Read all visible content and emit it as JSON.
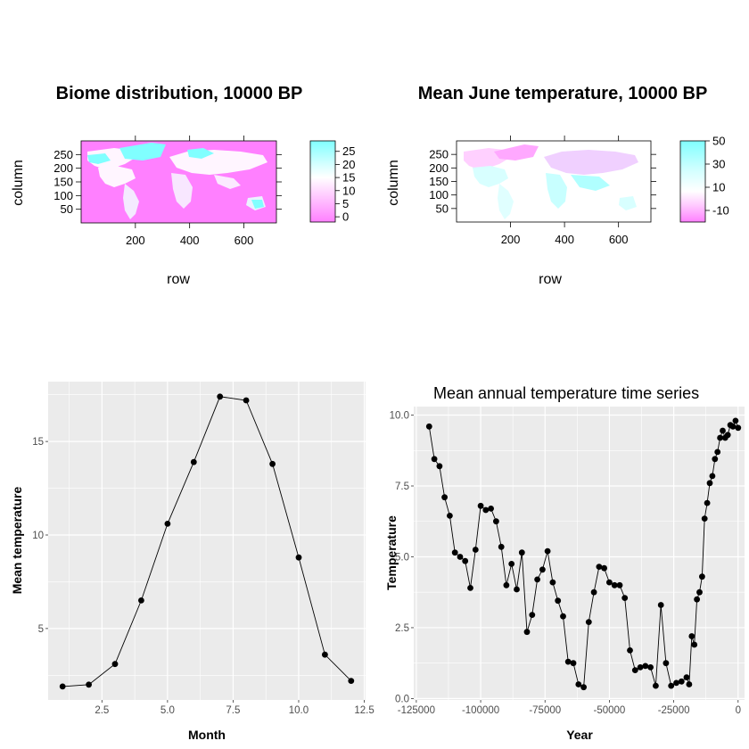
{
  "chart_data": [
    {
      "type": "heatmap",
      "title": "Biome distribution, 10000 BP",
      "xlabel": "row",
      "ylabel": "column",
      "x_ticks": [
        "200",
        "400",
        "600"
      ],
      "y_ticks": [
        "50",
        "100",
        "150",
        "200",
        "250"
      ],
      "xlim": [
        0,
        720
      ],
      "ylim": [
        0,
        300
      ],
      "colorbar": {
        "ticks": [
          "0",
          "5",
          "10",
          "15",
          "20",
          "25"
        ],
        "range": [
          -2,
          29
        ],
        "low_color": "#ff80ff",
        "mid_color": "#ffffff",
        "high_color": "#80ffff"
      },
      "grid": false
    },
    {
      "type": "heatmap",
      "title": "Mean June temperature, 10000 BP",
      "xlabel": "row",
      "ylabel": "column",
      "x_ticks": [
        "200",
        "400",
        "600"
      ],
      "y_ticks": [
        "50",
        "100",
        "150",
        "200",
        "250"
      ],
      "xlim": [
        0,
        720
      ],
      "ylim": [
        0,
        300
      ],
      "colorbar": {
        "ticks": [
          "-10",
          "10",
          "30",
          "50"
        ],
        "range": [
          -20,
          50
        ],
        "low_color": "#ff80ff",
        "mid_color": "#ffffff",
        "high_color": "#80ffff"
      },
      "grid": false
    },
    {
      "type": "line",
      "title": "",
      "xlabel": "Month",
      "ylabel": "Mean temperature",
      "x_ticks": [
        "2.5",
        "5.0",
        "7.5",
        "10.0",
        "12.5"
      ],
      "y_ticks": [
        "5",
        "10",
        "15"
      ],
      "xlim": [
        0.45,
        12.55
      ],
      "ylim": [
        1.18,
        18.2
      ],
      "grid": true,
      "x": [
        1,
        2,
        3,
        4,
        5,
        6,
        7,
        8,
        9,
        10,
        11,
        12
      ],
      "y": [
        1.9,
        2.0,
        3.1,
        6.5,
        10.6,
        13.9,
        17.4,
        17.2,
        13.8,
        8.8,
        3.6,
        2.2
      ]
    },
    {
      "type": "line",
      "title": "Mean annual temperature time series",
      "xlabel": "Year",
      "ylabel": "Temperature",
      "x_ticks": [
        "-125000",
        "-100000",
        "-75000",
        "-50000",
        "-25000",
        "0"
      ],
      "y_ticks": [
        "0.0",
        "2.5",
        "5.0",
        "7.5",
        "10.0"
      ],
      "xlim": [
        -126000,
        2500
      ],
      "ylim": [
        -0.05,
        10.3
      ],
      "grid": true,
      "x": [
        -120000,
        -118000,
        -116000,
        -114000,
        -112000,
        -110000,
        -108000,
        -106000,
        -104000,
        -102000,
        -100000,
        -98000,
        -96000,
        -94000,
        -92000,
        -90000,
        -88000,
        -86000,
        -84000,
        -82000,
        -80000,
        -78000,
        -76000,
        -74000,
        -72000,
        -70000,
        -68000,
        -66000,
        -64000,
        -62000,
        -60000,
        -58000,
        -56000,
        -54000,
        -52000,
        -50000,
        -48000,
        -46000,
        -44000,
        -42000,
        -40000,
        -38000,
        -36000,
        -34000,
        -32000,
        -30000,
        -28000,
        -26000,
        -24000,
        -22000,
        -20000,
        -19000,
        -18000,
        -17000,
        -16000,
        -15000,
        -14000,
        -13000,
        -12000,
        -11000,
        -10000,
        -9000,
        -8000,
        -7000,
        -6000,
        -5000,
        -4000,
        -3000,
        -2000,
        -1000,
        0
      ],
      "y": [
        9.6,
        8.45,
        8.2,
        7.1,
        6.45,
        5.15,
        5.0,
        4.85,
        3.9,
        5.25,
        6.8,
        6.65,
        6.7,
        6.25,
        5.35,
        4.0,
        4.75,
        3.85,
        5.15,
        2.35,
        2.95,
        4.2,
        4.55,
        5.2,
        4.1,
        3.45,
        2.9,
        1.3,
        1.25,
        0.5,
        0.4,
        2.7,
        3.75,
        4.65,
        4.6,
        4.1,
        4.0,
        4.0,
        3.55,
        1.7,
        1.0,
        1.1,
        1.15,
        1.1,
        0.45,
        3.3,
        1.25,
        0.45,
        0.55,
        0.6,
        0.75,
        0.5,
        2.2,
        1.9,
        3.5,
        3.75,
        4.3,
        6.35,
        6.9,
        7.6,
        7.85,
        8.45,
        8.7,
        9.2,
        9.45,
        9.2,
        9.3,
        9.65,
        9.6,
        9.8,
        9.55
      ]
    }
  ]
}
